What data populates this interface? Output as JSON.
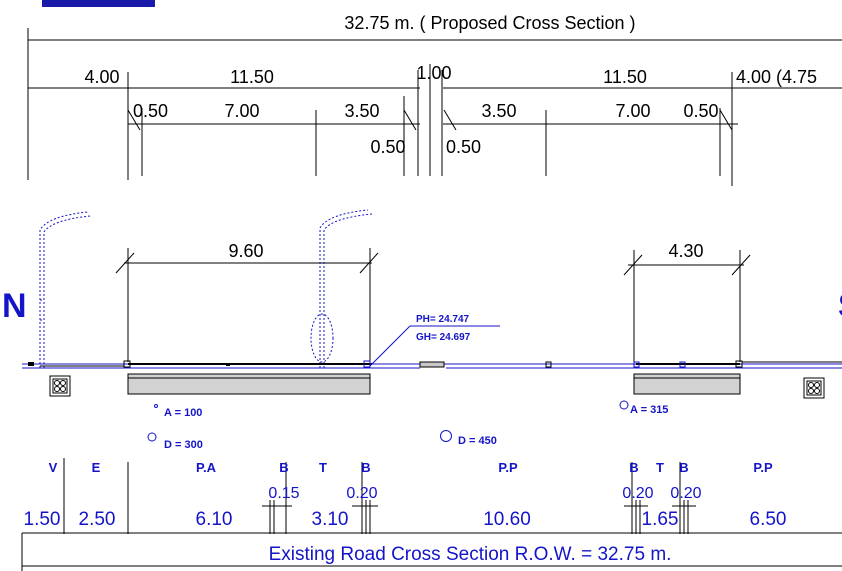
{
  "proposed": {
    "title": "32.75 m.  ( Proposed Cross Section )",
    "top_row": [
      "4.00",
      "11.50",
      "1.00",
      "11.50",
      "4.00 (4.75"
    ],
    "mid_row": [
      "0.50",
      "7.00",
      "3.50",
      "3.50",
      "7.00",
      "0.50"
    ],
    "low_row": [
      "0.50",
      "0.50"
    ]
  },
  "drawing": {
    "dim_left": "9.60",
    "dim_right": "4.30",
    "north": "N",
    "south": "S",
    "ph": "PH= 24.747",
    "gh": "GH= 24.697",
    "a1": "A = 100",
    "d1": "D = 300",
    "d2": "D = 450",
    "a2": "A = 315"
  },
  "existing": {
    "codes": [
      "V",
      "E",
      "P.A",
      "B",
      "T",
      "B",
      "P.P",
      "B",
      "T",
      "B",
      "P.P"
    ],
    "small_dims": [
      "0.15",
      "0.20",
      "0.20",
      "0.20"
    ],
    "widths": [
      "1.50",
      "2.50",
      "6.10",
      "3.10",
      "10.60",
      "1.65",
      "6.50"
    ],
    "title": "Existing Road Cross Section R.O.W. = 32.75 m."
  },
  "colors": {
    "line": "#000000",
    "blue": "#1414c8",
    "bar": "#1a1aaa",
    "slab": "#d2d2d2"
  }
}
